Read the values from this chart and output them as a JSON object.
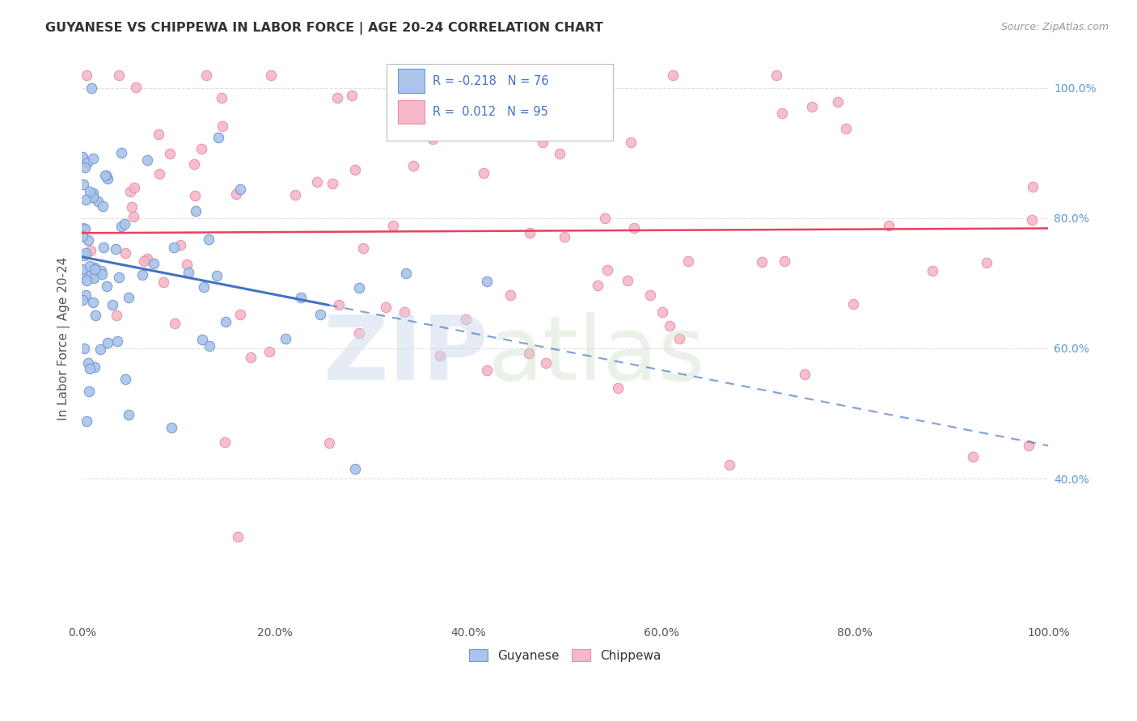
{
  "title": "GUYANESE VS CHIPPEWA IN LABOR FORCE | AGE 20-24 CORRELATION CHART",
  "source": "Source: ZipAtlas.com",
  "ylabel": "In Labor Force | Age 20-24",
  "xlim": [
    0.0,
    1.0
  ],
  "ylim": [
    0.18,
    1.05
  ],
  "background_color": "#ffffff",
  "grid_color": "#e0e0e0",
  "blue_color": "#aac4ea",
  "pink_color": "#f5b8c8",
  "blue_edge": "#7098d0",
  "pink_edge": "#e890a8",
  "blue_line_color": "#4472c4",
  "pink_line_color": "#e84060",
  "marker_size": 80,
  "guyanese_r": -0.218,
  "guyanese_n": 76,
  "chippewa_r": 0.012,
  "chippewa_n": 95
}
